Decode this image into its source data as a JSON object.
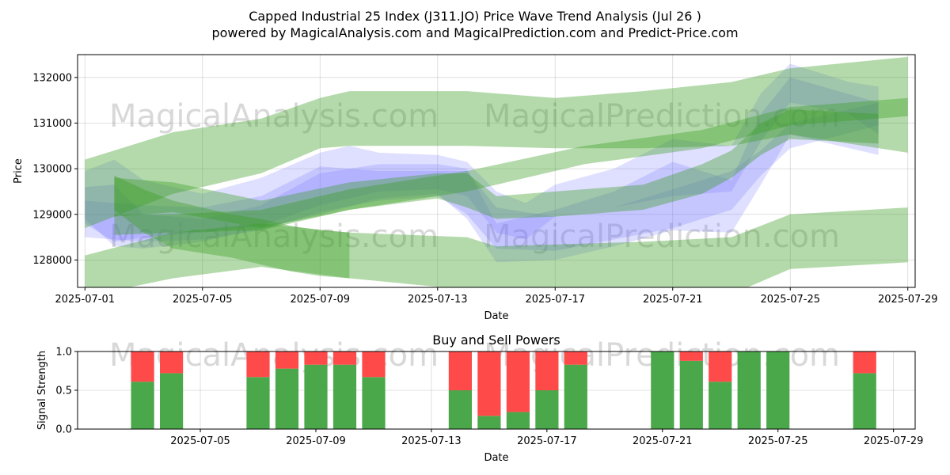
{
  "figure": {
    "title_line1": "Capped Industrial 25 Index (J311.JO) Price Wave Trend Analysis (Jul 26 )",
    "title_line2": "powered by MagicalAnalysis.com and MagicalPrediction.com and Predict-Price.com",
    "watermark_left": "MagicalAnalysis.com",
    "watermark_right": "MagicalPrediction.com"
  },
  "chart_data": [
    {
      "type": "area",
      "title": "",
      "xlabel": "Date",
      "ylabel": "Price",
      "xlim": [
        "2025-06-30T18:00",
        "2025-07-29T06:00"
      ],
      "ylim": [
        127400,
        132500
      ],
      "x_ticks": [
        "2025-07-01",
        "2025-07-05",
        "2025-07-09",
        "2025-07-13",
        "2025-07-17",
        "2025-07-21",
        "2025-07-25",
        "2025-07-29"
      ],
      "y_ticks": [
        128000,
        129000,
        130000,
        131000,
        132000
      ],
      "grid": true,
      "colors": {
        "green_band": "#3a9d23",
        "blue_band": "#6c6cff"
      },
      "green_bands": [
        {
          "x": [
            "2025-07-01",
            "2025-07-04",
            "2025-07-07",
            "2025-07-09",
            "2025-07-10",
            "2025-07-14",
            "2025-07-17",
            "2025-07-20",
            "2025-07-23",
            "2025-07-25",
            "2025-07-29"
          ],
          "upper": [
            130200,
            130800,
            131100,
            131550,
            131700,
            131700,
            131550,
            131700,
            131900,
            132200,
            132450
          ],
          "lower": [
            128700,
            129450,
            129900,
            130450,
            130500,
            130500,
            130450,
            130450,
            130500,
            130750,
            130350
          ]
        },
        {
          "x": [
            "2025-07-01",
            "2025-07-04",
            "2025-07-07",
            "2025-07-10",
            "2025-07-14",
            "2025-07-15",
            "2025-07-20",
            "2025-07-23",
            "2025-07-25",
            "2025-07-29"
          ],
          "upper": [
            128100,
            128600,
            128800,
            128600,
            128500,
            128300,
            128400,
            128500,
            129000,
            129150
          ],
          "lower": [
            127200,
            127600,
            127850,
            127600,
            127350,
            127050,
            127150,
            127250,
            127800,
            127950
          ]
        },
        {
          "x": [
            "2025-07-02",
            "2025-07-04",
            "2025-07-07",
            "2025-07-10",
            "2025-07-14",
            "2025-07-18",
            "2025-07-22",
            "2025-07-25",
            "2025-07-29"
          ],
          "upper": [
            129000,
            129000,
            129100,
            129550,
            129950,
            130500,
            130850,
            131350,
            131550
          ],
          "lower": [
            128550,
            128600,
            128650,
            129100,
            129500,
            130100,
            130450,
            130950,
            131150
          ]
        },
        {
          "x": [
            "2025-07-02",
            "2025-07-03",
            "2025-07-04",
            "2025-07-06",
            "2025-07-07",
            "2025-07-08",
            "2025-07-09",
            "2025-07-10"
          ],
          "upper": [
            129850,
            129550,
            129300,
            129000,
            128900,
            128750,
            128650,
            128600
          ],
          "lower": [
            129100,
            128600,
            128250,
            128050,
            127900,
            127750,
            127650,
            127600
          ]
        },
        {
          "x": [
            "2025-07-02",
            "2025-07-04",
            "2025-07-07",
            "2025-07-10",
            "2025-07-13",
            "2025-07-14",
            "2025-07-15",
            "2025-07-17",
            "2025-07-20",
            "2025-07-22",
            "2025-07-23",
            "2025-07-24",
            "2025-07-25",
            "2025-07-28"
          ],
          "upper": [
            129800,
            129700,
            129300,
            129700,
            129900,
            129900,
            129400,
            129500,
            129650,
            130100,
            130400,
            131000,
            131300,
            131200
          ],
          "lower": [
            128950,
            129050,
            128700,
            129100,
            129350,
            129150,
            128900,
            128950,
            129100,
            129450,
            129800,
            130300,
            130650,
            130550
          ]
        }
      ],
      "blue_bands": [
        {
          "x": [
            "2025-07-01",
            "2025-07-02",
            "2025-07-03",
            "2025-07-05",
            "2025-07-07",
            "2025-07-09",
            "2025-07-10",
            "2025-07-11",
            "2025-07-13",
            "2025-07-14",
            "2025-07-15",
            "2025-07-16",
            "2025-07-17",
            "2025-07-19",
            "2025-07-21",
            "2025-07-23",
            "2025-07-24",
            "2025-07-25",
            "2025-07-27",
            "2025-07-28"
          ],
          "upper": [
            129950,
            130200,
            129750,
            129450,
            129800,
            130350,
            130500,
            130350,
            130300,
            130150,
            129500,
            129250,
            129650,
            130000,
            130650,
            130500,
            131650,
            132300,
            131900,
            131800
          ],
          "lower": [
            128800,
            128400,
            128500,
            128600,
            128750,
            129200,
            129350,
            129500,
            129550,
            129400,
            128600,
            128450,
            128950,
            129150,
            129400,
            129500,
            130600,
            131450,
            131200,
            130750
          ]
        },
        {
          "x": [
            "2025-07-01",
            "2025-07-02",
            "2025-07-03",
            "2025-07-05",
            "2025-07-07",
            "2025-07-09",
            "2025-07-11",
            "2025-07-13",
            "2025-07-14",
            "2025-07-15",
            "2025-07-17",
            "2025-07-19",
            "2025-07-21",
            "2025-07-23",
            "2025-07-24",
            "2025-07-25",
            "2025-07-28"
          ],
          "upper": [
            129600,
            129650,
            129000,
            128900,
            129200,
            129900,
            130100,
            130100,
            130000,
            128800,
            129100,
            129500,
            130150,
            129750,
            131200,
            132000,
            131450
          ],
          "lower": [
            128900,
            128300,
            128250,
            128400,
            128700,
            129000,
            129350,
            129450,
            128900,
            127950,
            128000,
            128300,
            128650,
            128600,
            129650,
            130750,
            130300
          ]
        },
        {
          "x": [
            "2025-07-01",
            "2025-07-03",
            "2025-07-05",
            "2025-07-07",
            "2025-07-09",
            "2025-07-11",
            "2025-07-13",
            "2025-07-14",
            "2025-07-15",
            "2025-07-17",
            "2025-07-19",
            "2025-07-21",
            "2025-07-23",
            "2025-07-24",
            "2025-07-25",
            "2025-07-28"
          ],
          "upper": [
            129300,
            129200,
            129150,
            129400,
            130050,
            129950,
            129950,
            129950,
            129150,
            128950,
            129150,
            129550,
            129950,
            130400,
            131000,
            131450
          ],
          "lower": [
            128500,
            128400,
            128450,
            128650,
            129050,
            129300,
            129400,
            129000,
            128250,
            128200,
            128450,
            128700,
            129100,
            129850,
            130450,
            130950
          ]
        }
      ]
    },
    {
      "type": "bar",
      "title": "Buy and Sell Powers",
      "xlabel": "Date",
      "ylabel": "Signal Strength",
      "ylim": [
        0,
        1
      ],
      "xlim": [
        "2025-06-30T18:00",
        "2025-07-29T18:00"
      ],
      "x_ticks": [
        "2025-07-05",
        "2025-07-09",
        "2025-07-13",
        "2025-07-17",
        "2025-07-21",
        "2025-07-25",
        "2025-07-29"
      ],
      "y_ticks": [
        "0.0",
        "0.5",
        "1.0"
      ],
      "grid": true,
      "colors": {
        "buy": "#4aa84a",
        "sell": "#ff4a4a"
      },
      "series": [
        {
          "name": "Buy",
          "values": [
            0.61,
            0.72,
            0.67,
            0.78,
            0.83,
            0.83,
            0.67,
            0.5,
            0.17,
            0.22,
            0.5,
            0.83,
            1.0,
            0.88,
            0.61,
            1.0,
            1.0,
            0.72
          ]
        },
        {
          "name": "Sell",
          "values": [
            0.39,
            0.28,
            0.33,
            0.22,
            0.17,
            0.17,
            0.33,
            0.5,
            0.83,
            0.78,
            0.5,
            0.17,
            0.0,
            0.12,
            0.39,
            0.0,
            0.0,
            0.28
          ]
        }
      ],
      "categories": [
        "2025-07-03",
        "2025-07-04",
        "2025-07-07",
        "2025-07-08",
        "2025-07-09",
        "2025-07-10",
        "2025-07-11",
        "2025-07-14",
        "2025-07-15",
        "2025-07-16",
        "2025-07-17",
        "2025-07-18",
        "2025-07-21",
        "2025-07-22",
        "2025-07-23",
        "2025-07-24",
        "2025-07-25",
        "2025-07-28"
      ]
    }
  ]
}
